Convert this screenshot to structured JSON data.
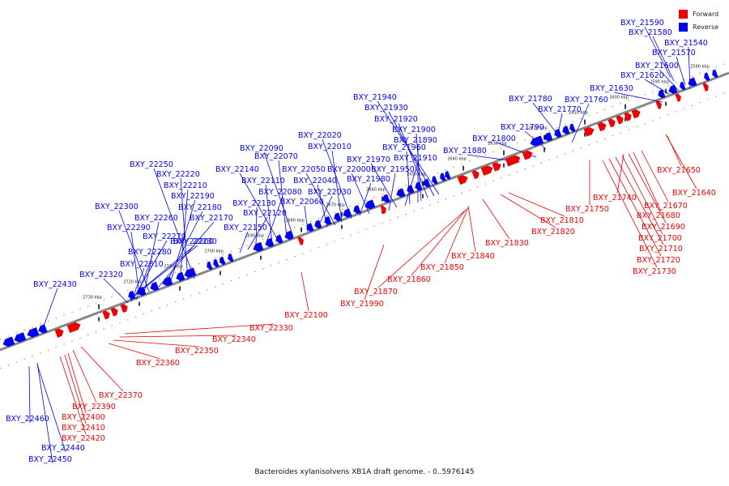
{
  "caption": "Bacteroides xylanisolvens XB1A draft genome. - 0..5976145",
  "legend": [
    {
      "label": "Forward",
      "color": "#ee0000"
    },
    {
      "label": "Reverse",
      "color": "#0000ee"
    }
  ],
  "colors": {
    "forward": "#ee0000",
    "reverse": "#0000ee",
    "backbone": "#777777",
    "tick": "#000000"
  },
  "ticks": [
    "2580 kbp",
    "2590 kbp",
    "2600 kbp",
    "2610 kbp",
    "2620 kbp",
    "2630 kbp",
    "2640 kbp",
    "2650 kbp",
    "2660 kbp",
    "2670 kbp",
    "2680 kbp",
    "2690 kbp",
    "2700 kbp",
    "2710 kbp",
    "2720 kbp",
    "2730 kbp"
  ],
  "reverse_labels": [
    "BXY_21590",
    "BXY_21580",
    "BXY_21540",
    "BXY_21570",
    "BXY_21600",
    "BXY_21620",
    "BXY_21630",
    "BXY_21780",
    "BXY_21760",
    "BXY_21770",
    "BXY_21790",
    "BXY_21800",
    "BXY_21880",
    "BXY_21940",
    "BXY_21930",
    "BXY_21920",
    "BXY_21900",
    "BXY_21890",
    "BXY_21960",
    "BXY_21910",
    "BXY_21970",
    "BXY_21950",
    "BXY_22000",
    "BXY_21980",
    "BXY_22020",
    "BXY_22010",
    "BXY_22050",
    "BXY_22040",
    "BXY_22030",
    "BXY_22060",
    "BXY_22090",
    "BXY_22070",
    "BXY_22140",
    "BXY_22110",
    "BXY_22080",
    "BXY_22130",
    "BXY_22120",
    "BXY_22150",
    "BXY_22250",
    "BXY_22220",
    "BXY_22210",
    "BXY_22190",
    "BXY_22180",
    "BXY_22170",
    "BXY_22300",
    "BXY_22260",
    "BXY_22290",
    "BXY_22200",
    "BXY_22270",
    "BXY_22230",
    "BXY_22280",
    "BXY_22310",
    "BXY_22320",
    "BXY_22430",
    "BXY_22460",
    "BXY_22440",
    "BXY_22450"
  ],
  "forward_labels": [
    "BXY_21650",
    "BXY_21640",
    "BXY_21740",
    "BXY_21670",
    "BXY_21750",
    "BXY_21680",
    "BXY_21690",
    "BXY_21810",
    "BXY_21700",
    "BXY_21820",
    "BXY_21710",
    "BXY_21830",
    "BXY_21720",
    "BXY_21840",
    "BXY_21730",
    "BXY_21850",
    "BXY_21860",
    "BXY_21870",
    "BXY_21990",
    "BXY_22100",
    "BXY_22330",
    "BXY_22340",
    "BXY_22350",
    "BXY_22360",
    "BXY_22370",
    "BXY_22390",
    "BXY_22400",
    "BXY_22410",
    "BXY_22420"
  ]
}
